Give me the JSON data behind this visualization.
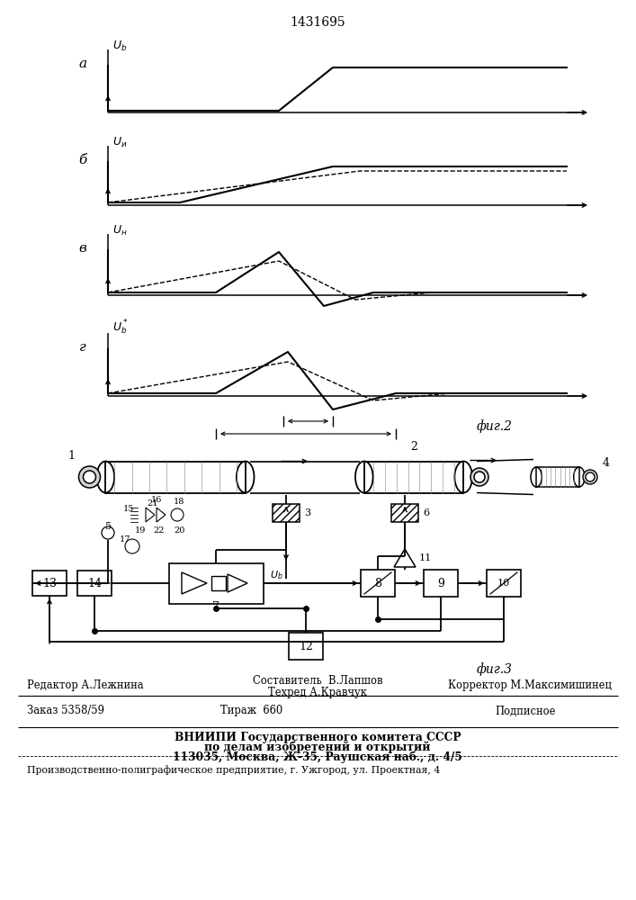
{
  "patent_number": "1431695",
  "fig2_label": "фиг.2",
  "fig3_label": "фиг.3",
  "background": "#ffffff",
  "bottom_editor": "Редактор А.Лежнина",
  "bottom_composer": "Составитель  В.Лапшов",
  "bottom_techred": "Техред А.Кравчук",
  "bottom_corrector": "Корректор М.Максимишинец",
  "bottom_order": "Заказ 5358/59",
  "bottom_tirazh": "Тираж  660",
  "bottom_podp": "Подписное",
  "bottom_vniipи": "ВНИИПИ Государственного комитета СССР",
  "bottom_po_delam": "по делам изобретений и открытий",
  "bottom_addr": "113035, Москва, Ж-35, Раушская наб., д. 4/5",
  "bottom_prod": "Производственно-полиграфическое предприятие, г. Ужгород, ул. Проектная, 4"
}
